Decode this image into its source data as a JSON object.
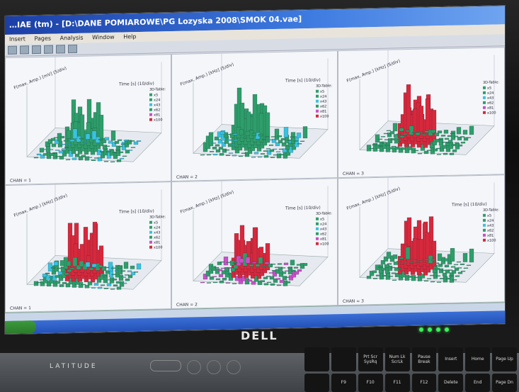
{
  "window": {
    "title": "…IAE (tm) - [D:\\DANE POMIAROWE\\PG Lozyska 2008\\SMOK 04.vae]",
    "menu": [
      "Insert",
      "Pages",
      "Analysis",
      "Window",
      "Help"
    ]
  },
  "panels": [
    {
      "ylabel": "F(max, Amp.) [mV] (5/div)",
      "xlabel": "Time [s] (10/div)",
      "channel": "CHAN = 1",
      "legend_title": "3D-Table:",
      "legend": [
        "x5",
        "x24",
        "x43",
        "x62",
        "x81",
        "x100"
      ]
    },
    {
      "ylabel": "F(max, Amp.) [kHz] (5/div)",
      "xlabel": "Time [s] (10/div)",
      "channel": "CHAN = 2",
      "legend_title": "3D-Table:",
      "legend": [
        "x5",
        "x24",
        "x43",
        "x62",
        "x81",
        "x100"
      ]
    },
    {
      "ylabel": "F(max, Amp.) [kHz] (5/div)",
      "xlabel": "",
      "channel": "CHAN = 3",
      "legend_title": "3D-Table:",
      "legend": [
        "x5",
        "x24",
        "x43",
        "x62",
        "x81",
        "x100"
      ]
    },
    {
      "ylabel": "F(max, Amp.) [kHz] (5/div)",
      "xlabel": "Time [s] (10/div)",
      "channel": "CHAN = 1",
      "legend_title": "3D-Table:",
      "legend": [
        "x5",
        "x24",
        "x43",
        "x62",
        "x81",
        "x100"
      ]
    },
    {
      "ylabel": "F(max, Amp.) [kHz] (5/div)",
      "xlabel": "Time [s] (10/div)",
      "channel": "CHAN = 2",
      "legend_title": "3D-Table:",
      "legend": [
        "x5",
        "x24",
        "x43",
        "x62",
        "x81",
        "x100"
      ]
    },
    {
      "ylabel": "F(max, Amp.) [kHz] (5/div)",
      "xlabel": "Time [s] (10/div)",
      "channel": "CHAN = 3",
      "legend_title": "3D-Table:",
      "legend": [
        "x5",
        "x24",
        "x43",
        "x62",
        "x81",
        "x100"
      ]
    }
  ],
  "laptop": {
    "logo": "DELL",
    "brand": "LATITUDE",
    "keys": [
      "Insert",
      "Home",
      "Page Up",
      "Prt Scr SysRq",
      "Num Lk ScrLk",
      "Pause Break",
      "Delete",
      "End",
      "Page Dn",
      "F9",
      "F10",
      "F11",
      "F12"
    ]
  },
  "colors": {
    "bar_green": "#2e9e6a",
    "bar_cyan": "#39c2e0",
    "bar_red": "#d8283c",
    "bar_magenta": "#c850c8",
    "title": "#1b3fa6"
  }
}
